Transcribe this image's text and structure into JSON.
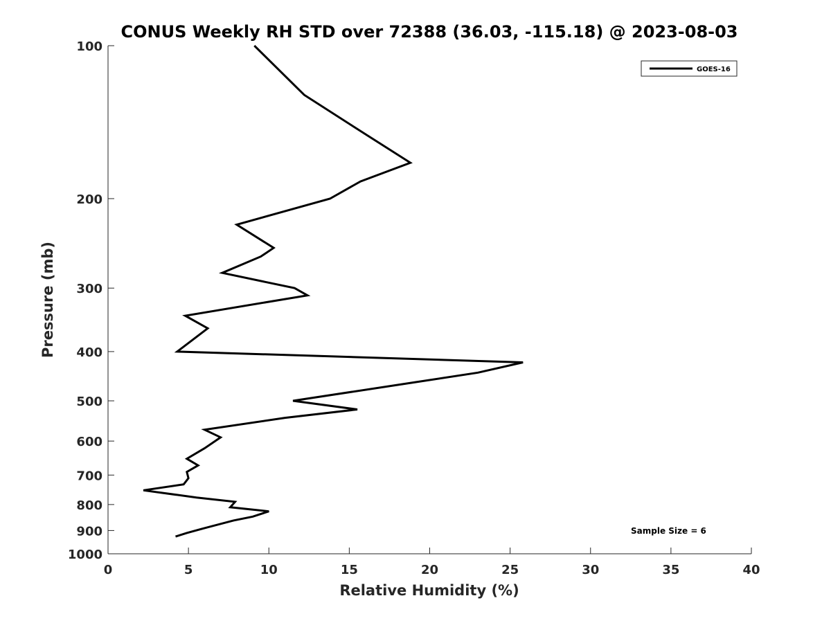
{
  "chart_data": {
    "type": "line",
    "title": "CONUS Weekly RH STD over 72388 (36.03, -115.18) @ 2023-08-03",
    "xlabel": "Relative Humidity (%)",
    "ylabel": "Pressure (mb)",
    "xlim": [
      0,
      40
    ],
    "ylim": [
      1000,
      100
    ],
    "yscale": "log",
    "xticks": [
      0,
      5,
      10,
      15,
      20,
      25,
      30,
      35,
      40
    ],
    "yticks": [
      100,
      200,
      300,
      400,
      500,
      600,
      700,
      800,
      900,
      1000
    ],
    "grid": false,
    "legend_position": "top-right",
    "annotation": "Sample Size = 6",
    "series": [
      {
        "name": "GOES-16",
        "color": "#000000",
        "points": [
          {
            "x": 9.1,
            "y": 100
          },
          {
            "x": 12.2,
            "y": 125
          },
          {
            "x": 16.1,
            "y": 150
          },
          {
            "x": 18.8,
            "y": 170
          },
          {
            "x": 15.7,
            "y": 185
          },
          {
            "x": 13.8,
            "y": 200
          },
          {
            "x": 8.0,
            "y": 225
          },
          {
            "x": 10.3,
            "y": 250
          },
          {
            "x": 9.5,
            "y": 260
          },
          {
            "x": 7.1,
            "y": 280
          },
          {
            "x": 11.6,
            "y": 300
          },
          {
            "x": 12.4,
            "y": 310
          },
          {
            "x": 4.8,
            "y": 340
          },
          {
            "x": 6.2,
            "y": 360
          },
          {
            "x": 4.3,
            "y": 400
          },
          {
            "x": 25.8,
            "y": 420
          },
          {
            "x": 23.0,
            "y": 440
          },
          {
            "x": 19.0,
            "y": 460
          },
          {
            "x": 11.5,
            "y": 500
          },
          {
            "x": 15.5,
            "y": 520
          },
          {
            "x": 11.0,
            "y": 540
          },
          {
            "x": 6.0,
            "y": 570
          },
          {
            "x": 7.0,
            "y": 590
          },
          {
            "x": 6.0,
            "y": 620
          },
          {
            "x": 4.9,
            "y": 650
          },
          {
            "x": 5.6,
            "y": 670
          },
          {
            "x": 4.9,
            "y": 690
          },
          {
            "x": 5.0,
            "y": 710
          },
          {
            "x": 4.7,
            "y": 730
          },
          {
            "x": 2.2,
            "y": 750
          },
          {
            "x": 5.5,
            "y": 775
          },
          {
            "x": 7.9,
            "y": 790
          },
          {
            "x": 7.6,
            "y": 810
          },
          {
            "x": 10.0,
            "y": 825
          },
          {
            "x": 9.0,
            "y": 845
          },
          {
            "x": 7.8,
            "y": 860
          },
          {
            "x": 6.0,
            "y": 890
          },
          {
            "x": 4.9,
            "y": 910
          },
          {
            "x": 4.2,
            "y": 925
          }
        ]
      }
    ]
  }
}
